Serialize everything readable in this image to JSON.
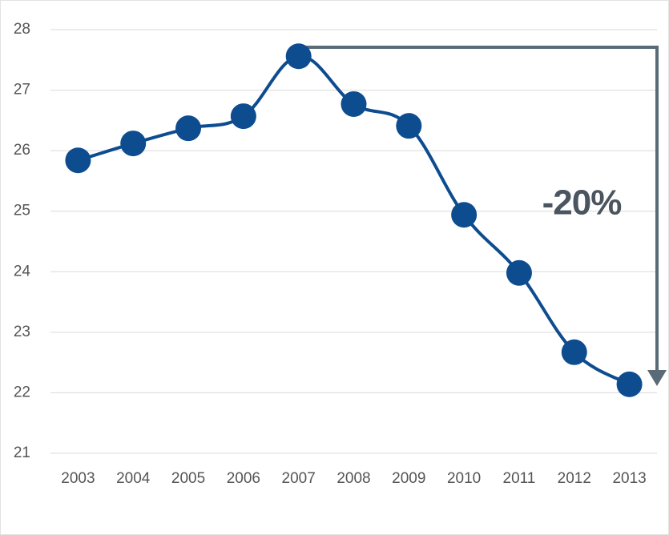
{
  "chart_data": {
    "type": "line",
    "categories": [
      "2003",
      "2004",
      "2005",
      "2006",
      "2007",
      "2008",
      "2009",
      "2010",
      "2011",
      "2012",
      "2013"
    ],
    "values": [
      25.84,
      26.12,
      26.37,
      26.57,
      27.56,
      26.77,
      26.41,
      24.94,
      23.98,
      22.67,
      22.14
    ],
    "color": "#0d4c8f",
    "ylim": [
      21,
      28
    ],
    "yticks": [
      21,
      22,
      23,
      24,
      25,
      26,
      27,
      28
    ],
    "grid": true,
    "annotation": "-20%"
  }
}
